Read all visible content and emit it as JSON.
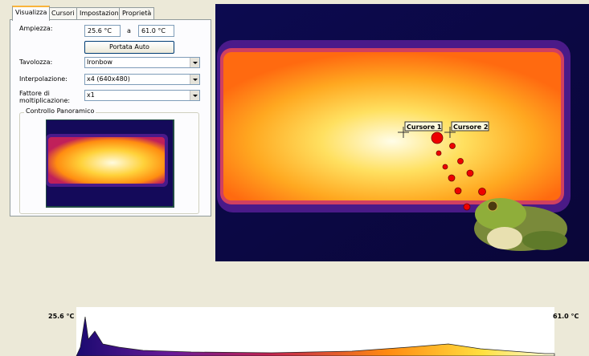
{
  "tabs": [
    "Visualizza",
    "Cursori",
    "Impostazioni",
    "Proprietà"
  ],
  "settings": {
    "range_label": "Ampiezza:",
    "range_min": "25.6 °C",
    "range_sep": "a",
    "range_max": "61.0 °C",
    "auto_button": "Portata Auto",
    "palette_label": "Tavolozza:",
    "palette_value": "Ironbow",
    "interp_label": "Interpolazione:",
    "interp_value": "x4 (640x480)",
    "mult_label_1": "Fattore di",
    "mult_label_2": "moltiplicazione:",
    "mult_value": "x1",
    "pan_group": "Controllo Panoramico"
  },
  "cursors": [
    "Cursore 1",
    "Cursore 2"
  ],
  "histogram": {
    "min_label": "25.6 °C",
    "max_label": "61.0 °C"
  }
}
